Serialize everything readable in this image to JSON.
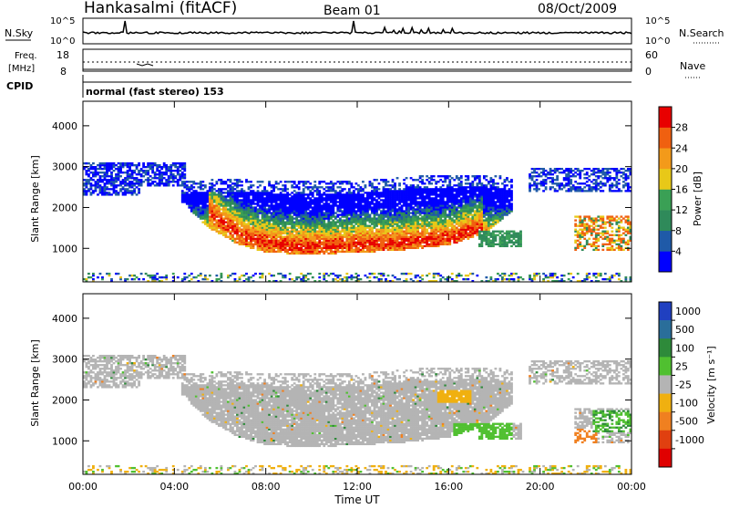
{
  "header": {
    "station": "Hankasalmi (fitACF)",
    "beam": "Beam 01",
    "date": "08/Oct/2009"
  },
  "top_panels": {
    "nsky_label": "N.Sky",
    "nsearch_label": "N.Search",
    "nsky_ticks": [
      "10^5",
      "10^0"
    ],
    "nsearch_ticks": [
      "10^5",
      "10^0"
    ],
    "freq_label_line1": "Freq.",
    "freq_label_line2": "[MHz]",
    "freq_ticks": [
      "18",
      "8"
    ],
    "nave_label": "Nave",
    "nave_ticks": [
      "60",
      "0"
    ],
    "cpid_label": "CPID",
    "cpid_text": "normal (fast stereo) 153"
  },
  "colors": {
    "power": [
      "#0000ff",
      "#1f5aa8",
      "#2f8a5a",
      "#3aa055",
      "#e8c818",
      "#f39a1a",
      "#f06010",
      "#e80000"
    ],
    "velocity": [
      "#2040c0",
      "#2a6e9a",
      "#2e8a3a",
      "#50c030",
      "#b4b4b4",
      "#f0b010",
      "#f08020",
      "#e04010",
      "#e00000"
    ]
  },
  "chart_data": [
    {
      "type": "heatmap",
      "name": "power",
      "title": "",
      "ylabel": "Slant Range [km]",
      "xlabel": "",
      "x_range_hours": [
        0,
        24
      ],
      "ylim": [
        180,
        4600
      ],
      "y_ticks": [
        1000,
        2000,
        3000,
        4000
      ],
      "colorbar_label": "Power [dB]",
      "colorbar_ticks": [
        4,
        8,
        12,
        16,
        20,
        24,
        28
      ],
      "colorbar_range": [
        0,
        32
      ]
    },
    {
      "type": "heatmap",
      "name": "velocity",
      "title": "",
      "ylabel": "Slant Range [km]",
      "xlabel": "Time UT",
      "x_range_hours": [
        0,
        24
      ],
      "x_ticks": [
        "00:00",
        "04:00",
        "08:00",
        "12:00",
        "16:00",
        "20:00",
        "00:00"
      ],
      "ylim": [
        180,
        4600
      ],
      "y_ticks": [
        1000,
        2000,
        3000,
        4000
      ],
      "colorbar_label": "Velocity [m s⁻¹]",
      "colorbar_ticks": [
        "1000",
        "500",
        "100",
        "25",
        "-25",
        "-100",
        "-500",
        "-1000"
      ]
    }
  ]
}
